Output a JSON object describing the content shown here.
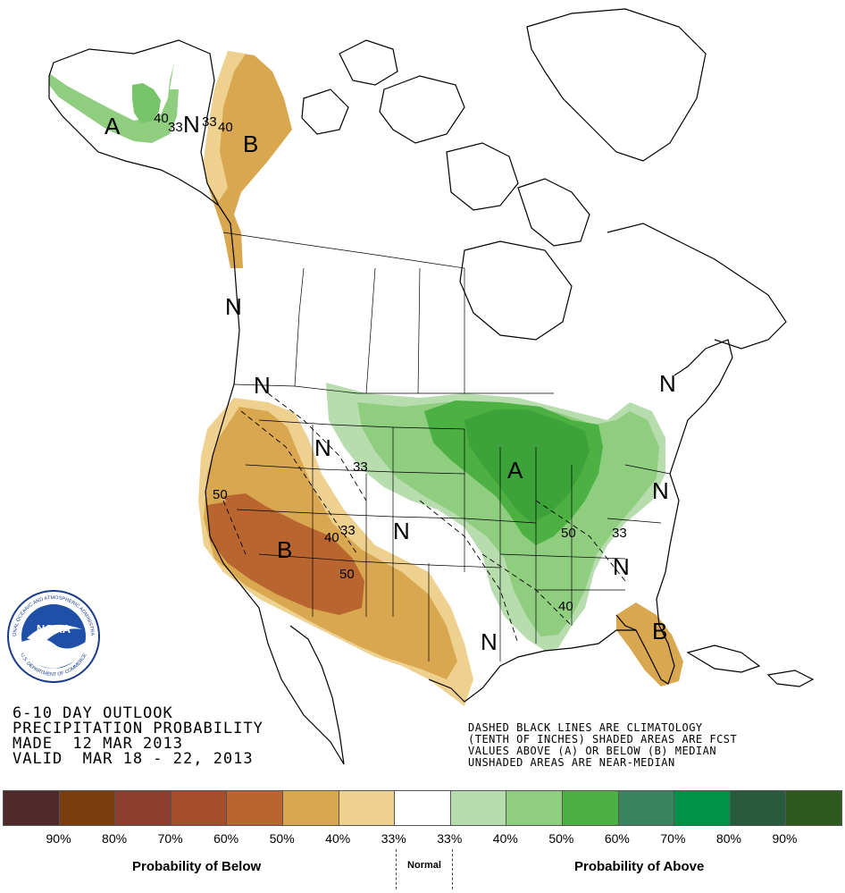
{
  "title": {
    "line1": "6-10 DAY OUTLOOK",
    "line2": "PRECIPITATION PROBABILITY",
    "line3": "MADE  12 MAR 2013",
    "line4": "VALID  MAR 18 - 22, 2013"
  },
  "notes": {
    "line1": "DASHED BLACK LINES ARE CLIMATOLOGY",
    "line2": "(TENTH OF INCHES) SHADED AREAS ARE FCST",
    "line3": "VALUES ABOVE (A) OR BELOW (B) MEDIAN",
    "line4": "UNSHADED AREAS ARE NEAR-MEDIAN"
  },
  "logo": {
    "text": "NOAA",
    "ring_text": "NATIONAL OCEANIC AND ATMOSPHERIC ADMINISTRATION",
    "ring_text_bottom": "U.S. DEPARTMENT OF COMMERCE"
  },
  "map": {
    "labels": {
      "alaska_above": "A",
      "alaska_normal": "N",
      "canada_below": "B",
      "bc_normal": "N",
      "pnw_normal": "N",
      "idaho_normal": "N",
      "plains_normal": "N",
      "midwest_above": "A",
      "northeast_normal": "N",
      "atlantic_normal": "N",
      "carolina_normal": "N",
      "texas_normal": "N",
      "southwest_below": "B",
      "florida_below": "B"
    },
    "contours": {
      "ak_40": "40",
      "ak_33": "33",
      "ak_33b": "33",
      "ak_40b": "40",
      "sw_50": "50",
      "sw_40": "40",
      "sw_33": "33",
      "nm_50": "50",
      "plains_33": "33",
      "mw_50": "50",
      "se_33": "33",
      "gulf_40": "40"
    }
  },
  "legend": {
    "colors": [
      "#4f2a2a",
      "#7a3d0d",
      "#8f3f2e",
      "#a64e2c",
      "#b8652f",
      "#d9a74f",
      "#eed18e",
      "#ffffff",
      "#b7dcae",
      "#8fcd7f",
      "#4cb043",
      "#3c8361",
      "#009247",
      "#285b3c",
      "#2d5a1c"
    ],
    "percents": [
      "90%",
      "80%",
      "70%",
      "60%",
      "50%",
      "40%",
      "33%",
      "33%",
      "40%",
      "50%",
      "60%",
      "70%",
      "80%",
      "90%"
    ],
    "below_label": "Probability of Below",
    "normal_label": "Normal",
    "above_label": "Probability of Above"
  }
}
